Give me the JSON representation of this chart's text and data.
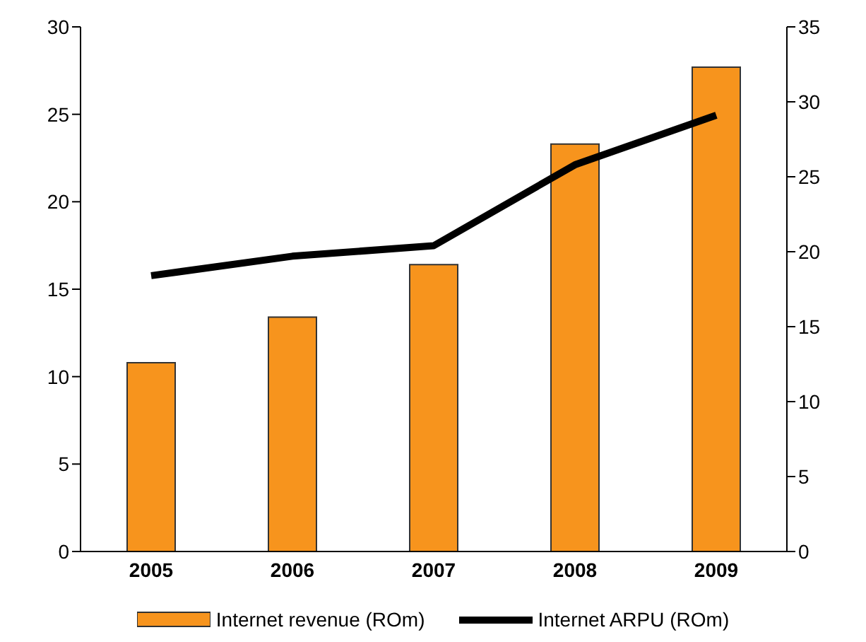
{
  "chart_data": {
    "type": "bar",
    "categories": [
      "2005",
      "2006",
      "2007",
      "2008",
      "2009"
    ],
    "series": [
      {
        "name": "Internet revenue (ROm)",
        "color": "#f7941d",
        "values": [
          10.8,
          13.4,
          16.4,
          23.3,
          27.7
        ]
      },
      {
        "name": "Internet ARPU (ROm)",
        "type": "line",
        "axis": "y2",
        "color": "#000000",
        "values": [
          18.4,
          19.7,
          20.4,
          25.8,
          29.1
        ]
      }
    ],
    "ylim": [
      0,
      30
    ],
    "yticks": [
      0,
      5,
      10,
      15,
      20,
      25,
      30
    ],
    "y2lim": [
      0,
      35
    ],
    "y2ticks": [
      0,
      5,
      10,
      15,
      20,
      25,
      30,
      35
    ],
    "grid": false,
    "legend": "bottom",
    "marker": "none"
  }
}
